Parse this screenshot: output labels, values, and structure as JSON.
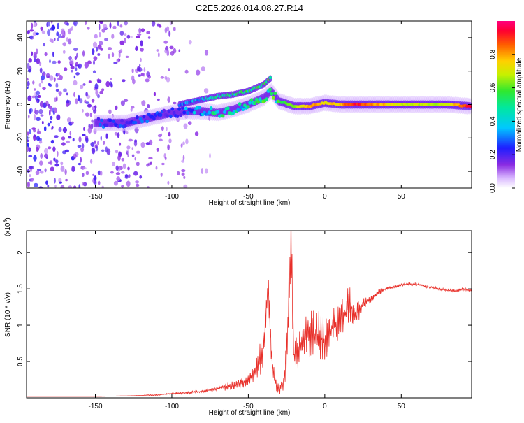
{
  "title": "C2E5.2026.014.08.27.R14",
  "chart_data": [
    {
      "type": "heatmap",
      "title": "",
      "xlabel": "Height of straight line (km)",
      "ylabel": "Frequency (Hz)",
      "xlim": [
        -195,
        96
      ],
      "ylim": [
        -50,
        50
      ],
      "xticks": [
        -150,
        -100,
        -50,
        0,
        50
      ],
      "yticks": [
        -40,
        -20,
        0,
        20,
        40
      ],
      "colorbar": {
        "label": "Normalized spectral amplitude",
        "range": [
          0,
          1
        ],
        "ticks": [
          0.0,
          0.2,
          0.4,
          0.6,
          0.8
        ]
      },
      "ridge": [
        {
          "x": -145,
          "freq": -11,
          "amp": 0.25
        },
        {
          "x": -130,
          "freq": -11,
          "amp": 0.22
        },
        {
          "x": -115,
          "freq": -8,
          "amp": 0.25
        },
        {
          "x": -100,
          "freq": -5,
          "amp": 0.22
        },
        {
          "x": -90,
          "freq": -4,
          "amp": 0.3
        },
        {
          "x": -80,
          "freq": -4,
          "amp": 0.35
        },
        {
          "x": -70,
          "freq": -5,
          "amp": 0.45
        },
        {
          "x": -60,
          "freq": -3,
          "amp": 0.4
        },
        {
          "x": -50,
          "freq": 0,
          "amp": 0.45
        },
        {
          "x": -40,
          "freq": 4,
          "amp": 0.5
        },
        {
          "x": -35,
          "freq": 8,
          "amp": 0.55
        },
        {
          "x": -30,
          "freq": 2,
          "amp": 0.55
        },
        {
          "x": -20,
          "freq": -1,
          "amp": 0.65
        },
        {
          "x": -10,
          "freq": -1,
          "amp": 0.85
        },
        {
          "x": 0,
          "freq": 1,
          "amp": 0.75
        },
        {
          "x": 10,
          "freq": 0,
          "amp": 0.8
        },
        {
          "x": 20,
          "freq": 0,
          "amp": 0.95
        },
        {
          "x": 50,
          "freq": 0,
          "amp": 0.7
        },
        {
          "x": 80,
          "freq": 0,
          "amp": 0.7
        },
        {
          "x": 95,
          "freq": -1,
          "amp": 0.95
        }
      ],
      "upper_branch": [
        {
          "x": -95,
          "freq": 0,
          "amp": 0.3
        },
        {
          "x": -80,
          "freq": 3,
          "amp": 0.35
        },
        {
          "x": -70,
          "freq": 5,
          "amp": 0.45
        },
        {
          "x": -60,
          "freq": 6,
          "amp": 0.5
        },
        {
          "x": -50,
          "freq": 8,
          "amp": 0.5
        },
        {
          "x": -40,
          "freq": 12,
          "amp": 0.5
        },
        {
          "x": -35,
          "freq": 16,
          "amp": 0.55
        }
      ]
    },
    {
      "type": "line",
      "title": "",
      "xlabel": "Height of straight line (km)",
      "ylabel": "SNR (10 * v/v)",
      "scale_label": "(x10",
      "scale_exponent": "4",
      "scale_close": ")",
      "xlim": [
        -195,
        96
      ],
      "ylim": [
        0,
        2.3
      ],
      "xticks": [
        -150,
        -100,
        -50,
        0,
        50
      ],
      "yticks": [
        0.5,
        1.0,
        1.5,
        2.0
      ],
      "color": "#e8302a",
      "series": [
        {
          "name": "SNR",
          "x": [
            -195,
            -170,
            -150,
            -125,
            -110,
            -100,
            -90,
            -80,
            -72,
            -65,
            -58,
            -52,
            -46,
            -42,
            -39,
            -37,
            -36,
            -35,
            -33,
            -31,
            -29,
            -27,
            -25,
            -23,
            -22,
            -21,
            -20,
            -18,
            -16,
            -12,
            -8,
            -4,
            0,
            4,
            8,
            12,
            16,
            20,
            25,
            30,
            35,
            40,
            45,
            50,
            55,
            60,
            65,
            70,
            75,
            80,
            85,
            90,
            96
          ],
          "values": [
            0.02,
            0.02,
            0.02,
            0.03,
            0.04,
            0.06,
            0.07,
            0.09,
            0.12,
            0.15,
            0.18,
            0.22,
            0.32,
            0.55,
            0.9,
            1.5,
            1.2,
            0.6,
            0.25,
            0.15,
            0.12,
            0.25,
            0.6,
            1.6,
            2.3,
            1.1,
            0.5,
            0.6,
            0.7,
            0.85,
            0.9,
            0.85,
            0.8,
            0.95,
            1.05,
            1.1,
            1.3,
            1.1,
            1.3,
            1.35,
            1.45,
            1.5,
            1.52,
            1.55,
            1.57,
            1.56,
            1.54,
            1.52,
            1.5,
            1.48,
            1.47,
            1.5,
            1.48
          ],
          "noise_amplitude": [
            0,
            0,
            0,
            0,
            0.01,
            0.01,
            0.02,
            0.02,
            0.03,
            0.05,
            0.06,
            0.08,
            0.12,
            0.25,
            0.35,
            0.3,
            0.35,
            0.3,
            0.1,
            0.08,
            0.1,
            0.15,
            0.3,
            0.4,
            0.5,
            0.35,
            0.25,
            0.3,
            0.3,
            0.35,
            0.35,
            0.35,
            0.3,
            0.3,
            0.3,
            0.3,
            0.25,
            0.2,
            0.08,
            0.05,
            0.04,
            0.03,
            0.02,
            0.02,
            0.02,
            0.02,
            0.02,
            0.02,
            0.02,
            0.02,
            0.02,
            0.02,
            0.02
          ]
        }
      ]
    }
  ]
}
